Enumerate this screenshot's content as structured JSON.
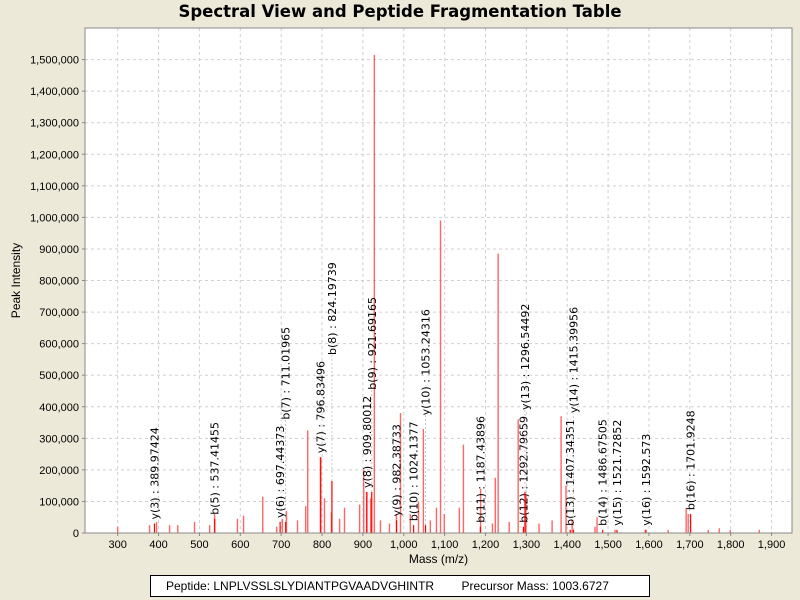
{
  "chart_data": {
    "type": "bar",
    "title": "Spectral View and Peptide Fragmentation Table",
    "xlabel": "Mass (m/z)",
    "ylabel": "Peak Intensity",
    "xlim": [
      220,
      1950
    ],
    "ylim": [
      0,
      1600000
    ],
    "grid": true,
    "x_ticks": [
      300,
      400,
      500,
      600,
      700,
      800,
      900,
      1000,
      1100,
      1200,
      1300,
      1400,
      1500,
      1600,
      1700,
      1800,
      1900
    ],
    "x_tick_labels": [
      "300",
      "400",
      "500",
      "600",
      "700",
      "800",
      "900",
      "1,000",
      "1,100",
      "1,200",
      "1,300",
      "1,400",
      "1,500",
      "1,600",
      "1,700",
      "1,800",
      "1,900"
    ],
    "y_ticks": [
      0,
      100000,
      200000,
      300000,
      400000,
      500000,
      600000,
      700000,
      800000,
      900000,
      1000000,
      1100000,
      1200000,
      1300000,
      1400000,
      1500000
    ],
    "y_tick_labels": [
      "0",
      "100,000",
      "200,000",
      "300,000",
      "400,000",
      "500,000",
      "600,000",
      "700,000",
      "800,000",
      "900,000",
      "1,000,000",
      "1,100,000",
      "1,200,000",
      "1,300,000",
      "1,400,000",
      "1,500,000"
    ],
    "peaks": [
      [
        300,
        20000
      ],
      [
        378,
        25000
      ],
      [
        395,
        35000
      ],
      [
        427,
        25000
      ],
      [
        447,
        25000
      ],
      [
        488,
        35000
      ],
      [
        525,
        25000
      ],
      [
        537,
        60000
      ],
      [
        593,
        45000
      ],
      [
        608,
        55000
      ],
      [
        655,
        115000
      ],
      [
        689,
        20000
      ],
      [
        703,
        45000
      ],
      [
        713,
        70000
      ],
      [
        740,
        40000
      ],
      [
        760,
        85000
      ],
      [
        765,
        325000
      ],
      [
        796,
        240000
      ],
      [
        806,
        110000
      ],
      [
        823,
        65000
      ],
      [
        843,
        45000
      ],
      [
        855,
        80000
      ],
      [
        892,
        90000
      ],
      [
        902,
        200000
      ],
      [
        909,
        130000
      ],
      [
        919,
        110000
      ],
      [
        928,
        1515000
      ],
      [
        943,
        40000
      ],
      [
        965,
        30000
      ],
      [
        982,
        60000
      ],
      [
        992,
        380000
      ],
      [
        1016,
        60000
      ],
      [
        1036,
        100000
      ],
      [
        1048,
        330000
      ],
      [
        1065,
        40000
      ],
      [
        1080,
        80000
      ],
      [
        1090,
        990000
      ],
      [
        1099,
        60000
      ],
      [
        1136,
        80000
      ],
      [
        1146,
        280000
      ],
      [
        1188,
        140000
      ],
      [
        1217,
        30000
      ],
      [
        1224,
        175000
      ],
      [
        1231,
        885000
      ],
      [
        1258,
        35000
      ],
      [
        1280,
        360000
      ],
      [
        1299,
        120000
      ],
      [
        1331,
        30000
      ],
      [
        1363,
        40000
      ],
      [
        1385,
        370000
      ],
      [
        1397,
        150000
      ],
      [
        1412,
        40000
      ],
      [
        1468,
        20000
      ],
      [
        1473,
        50000
      ],
      [
        1517,
        10000
      ],
      [
        1591,
        10000
      ],
      [
        1647,
        10000
      ],
      [
        1691,
        80000
      ],
      [
        1696,
        60000
      ],
      [
        1745,
        10000
      ],
      [
        1772,
        15000
      ],
      [
        1799,
        10000
      ],
      [
        1870,
        10000
      ]
    ],
    "annotations": [
      {
        "label": "y(3) : 389.97424",
        "mz": 389.97424,
        "intensity": 30000
      },
      {
        "label": "b(5) : 537.41455",
        "mz": 537.41455,
        "intensity": 45000
      },
      {
        "label": "y(6) : 697.44373",
        "mz": 697.44373,
        "intensity": 35000
      },
      {
        "label": "b(7) : 711.01965",
        "mz": 711.01965,
        "intensity": 35000
      },
      {
        "label": "y(7) : 796.83496",
        "mz": 796.83496,
        "intensity": 240000
      },
      {
        "label": "b(8) : 824.19739",
        "mz": 824.19739,
        "intensity": 165000
      },
      {
        "label": "y(8) : 909.80012",
        "mz": 909.80012,
        "intensity": 130000
      },
      {
        "label": "b(9) : 921.69165",
        "mz": 921.69165,
        "intensity": 130000
      },
      {
        "label": "y(9) : 982.38733",
        "mz": 982.38733,
        "intensity": 40000
      },
      {
        "label": "b(10) : 1024.1377",
        "mz": 1024.1377,
        "intensity": 25000
      },
      {
        "label": "y(10) : 1053.24316",
        "mz": 1053.24316,
        "intensity": 25000
      },
      {
        "label": "b(11) : 1187.43896",
        "mz": 1187.43896,
        "intensity": 20000
      },
      {
        "label": "b(12) : 1292.79659",
        "mz": 1292.79659,
        "intensity": 20000
      },
      {
        "label": "y(13) : 1296.54492",
        "mz": 1296.54492,
        "intensity": 130000
      },
      {
        "label": "b(13) : 1407.34351",
        "mz": 1407.34351,
        "intensity": 10000
      },
      {
        "label": "y(14) : 1415.39956",
        "mz": 1415.39956,
        "intensity": 10000
      },
      {
        "label": "b(14) : 1486.67505",
        "mz": 1486.67505,
        "intensity": 10000
      },
      {
        "label": "y(15) : 1521.72852",
        "mz": 1521.72852,
        "intensity": 10000
      },
      {
        "label": "y(16) : 1592.573",
        "mz": 1592.573,
        "intensity": 10000
      },
      {
        "label": "b(16) : 1701.9248",
        "mz": 1701.9248,
        "intensity": 60000
      }
    ],
    "colors": {
      "peak": "#ff6666",
      "annotated": "#ff0000",
      "grid": "#d0d0d0"
    }
  },
  "legend": {
    "peptide": "Peptide: LNPLVSSLSLYDIANTPGVAADVGHINTR",
    "precursor": "Precursor Mass: 1003.6727"
  }
}
